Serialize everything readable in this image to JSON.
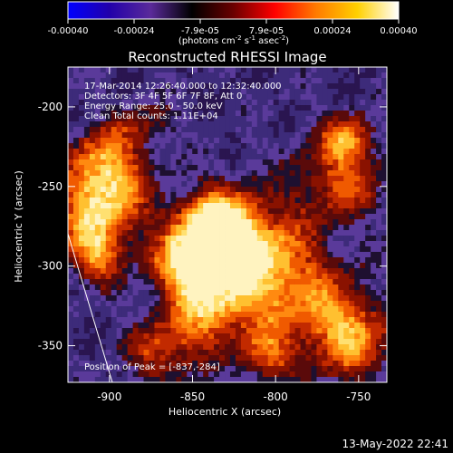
{
  "colorbar": {
    "ticks": [
      "-0.00040",
      "-0.00024",
      "-7.9e-05",
      "7.9e-05",
      "0.00024",
      "0.00040"
    ],
    "units_parts": [
      "(photons cm",
      "-2",
      " s",
      "-1",
      " asec",
      "-2",
      ")"
    ],
    "gradient": [
      "#0000ff",
      "#2200aa",
      "#5a2a9a",
      "#000000",
      "#6a0000",
      "#ff0000",
      "#ff7a00",
      "#ffd000",
      "#ffffff"
    ]
  },
  "plot": {
    "title": "Reconstructed RHESSI Image",
    "info_lines": [
      "17-Mar-2014 12:26:40.000 to 12:32:40.000",
      "Detectors: 3F 4F 5F 6F 7F 8F, Att 0",
      "Energy Range: 25.0 - 50.0 keV",
      "Clean     Total counts: 1.11E+04"
    ],
    "peak_label": "Position of Peak = [-837,-284]",
    "x_axis_label": "Heliocentric X (arcsec)",
    "y_axis_label": "Heliocentric Y (arcsec)",
    "x_ticks": [
      "-900",
      "-850",
      "-800",
      "-750"
    ],
    "y_ticks": [
      "-200",
      "-250",
      "-300",
      "-350"
    ],
    "xlim": [
      -925,
      -733
    ],
    "ylim": [
      -373,
      -175
    ],
    "x_tick_values": [
      -900,
      -850,
      -800,
      -750
    ],
    "y_tick_values": [
      -200,
      -250,
      -300,
      -350
    ]
  },
  "footer": {
    "timestamp": "13-May-2022 22:41"
  }
}
